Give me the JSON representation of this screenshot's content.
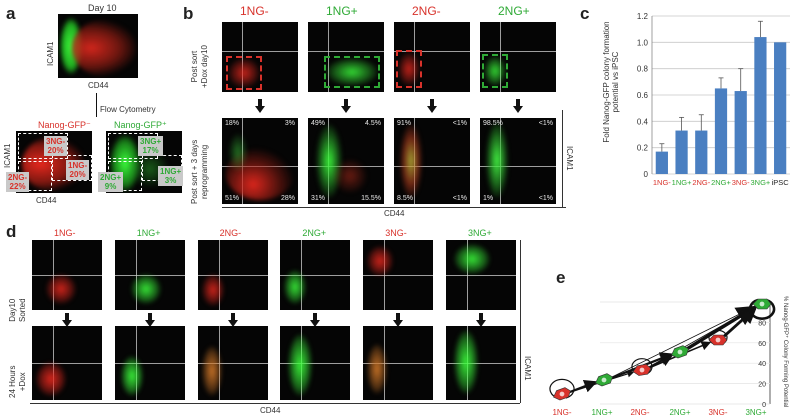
{
  "colors": {
    "red": "#d8322b",
    "green": "#2faa36",
    "bar": "#4a7fc1",
    "plot_bg": "#050505"
  },
  "panel_a": {
    "letter": "a",
    "title": "Day 10",
    "ylabel": "ICAM1",
    "xlabel": "CD44",
    "flow_label": "Flow Cytometry",
    "left_title": "Nanog-GFP⁻",
    "right_title": "Nanog-GFP⁺",
    "left_ylabel": "ICAM1",
    "left_xlabel": "CD44",
    "gates_left": [
      {
        "name": "3NG-",
        "pct": "20%"
      },
      {
        "name": "1NG-",
        "pct": "20%"
      },
      {
        "name": "2NG-",
        "pct": "22%"
      }
    ],
    "gates_right": [
      {
        "name": "3NG+",
        "pct": "17%"
      },
      {
        "name": "2NG+",
        "pct": "9%"
      },
      {
        "name": "1NG+",
        "pct": "3%"
      }
    ]
  },
  "panel_b": {
    "letter": "b",
    "columns": [
      "1NG-",
      "1NG+",
      "2NG-",
      "2NG+"
    ],
    "row1_label": "Post sort\n+Dox day10",
    "row2_label": "Post sort + 3 days\nreprogramming",
    "xlabel": "CD44",
    "ylabel": "ICAM1",
    "quadrants": [
      {
        "tl": "18%",
        "tr": "3%",
        "bl": "51%",
        "br": "28%"
      },
      {
        "tl": "49%",
        "tr": "4.5%",
        "bl": "31%",
        "br": "15.5%"
      },
      {
        "tl": "91%",
        "tr": "<1%",
        "bl": "8.5%",
        "br": "<1%"
      },
      {
        "tl": "98.5%",
        "tr": "<1%",
        "bl": "1%",
        "br": "<1%"
      }
    ]
  },
  "panel_c": {
    "letter": "c",
    "ylabel": "Fold Nanog-GFP colony formation potential vs iPSC"
  },
  "chart_data": {
    "type": "bar",
    "categories": [
      "1NG-",
      "1NG+",
      "2NG-",
      "2NG+",
      "3NG-",
      "3NG+",
      "iPSC"
    ],
    "category_colors": [
      "#d8322b",
      "#2faa36",
      "#d8322b",
      "#2faa36",
      "#d8322b",
      "#2faa36",
      "#222222"
    ],
    "values": [
      0.17,
      0.33,
      0.33,
      0.65,
      0.63,
      1.04,
      1.0
    ],
    "errors": [
      0.06,
      0.1,
      0.12,
      0.08,
      0.17,
      0.12,
      0
    ],
    "ylim": [
      0,
      1.2
    ],
    "yticks": [
      "0",
      "0.2",
      "0.4",
      "0.6",
      "0.8",
      "1.0",
      "1.2"
    ],
    "title": "",
    "xlabel": "",
    "ylabel": "Fold Nanog-GFP colony formation potential vs iPSC",
    "grid": true
  },
  "panel_d": {
    "letter": "d",
    "columns": [
      "1NG-",
      "1NG+",
      "2NG-",
      "2NG+",
      "3NG-",
      "3NG+"
    ],
    "row1_label": "Day10\nSorted",
    "row2_label": "24 Hours\n+Dox",
    "xlabel": "CD44",
    "ylabel": "ICAM1"
  },
  "panel_e": {
    "letter": "e",
    "categories": [
      "1NG-",
      "1NG+",
      "2NG-",
      "2NG+",
      "3NG-",
      "3NG+"
    ],
    "yticks": [
      "0",
      "20",
      "40",
      "60",
      "80",
      "100"
    ],
    "ylabel": "% Nanog-GFP⁺ Colony Forming Potential"
  }
}
